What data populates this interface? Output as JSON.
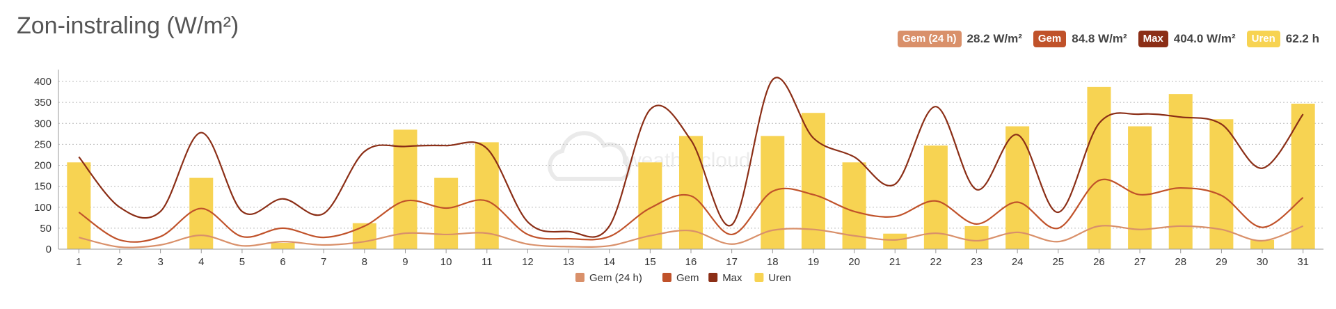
{
  "title": "Zon-instraling (W/m²)",
  "summary": [
    {
      "label": "Gem (24 h)",
      "value": "28.2 W/m²",
      "color": "#d9906a"
    },
    {
      "label": "Gem",
      "value": "84.8 W/m²",
      "color": "#c0522a"
    },
    {
      "label": "Max",
      "value": "404.0 W/m²",
      "color": "#8b2e16"
    },
    {
      "label": "Uren",
      "value": "62.2 h",
      "color": "#f7d352"
    }
  ],
  "watermark": "weathercloud",
  "chart_data": {
    "type": "bar",
    "categories": [
      "1",
      "2",
      "3",
      "4",
      "5",
      "6",
      "7",
      "8",
      "9",
      "10",
      "11",
      "12",
      "13",
      "14",
      "15",
      "16",
      "17",
      "18",
      "19",
      "20",
      "21",
      "22",
      "23",
      "24",
      "25",
      "26",
      "27",
      "28",
      "29",
      "30",
      "31"
    ],
    "ylim": [
      0,
      420
    ],
    "yticks": [
      0,
      50,
      100,
      150,
      200,
      250,
      300,
      350,
      400
    ],
    "grid": true,
    "legend_position": "bottom",
    "series": [
      {
        "name": "Gem (24 h)",
        "kind": "line",
        "color": "#d9906a",
        "values": [
          28,
          5,
          10,
          33,
          8,
          18,
          10,
          18,
          38,
          35,
          38,
          12,
          6,
          8,
          32,
          44,
          12,
          45,
          47,
          32,
          22,
          38,
          20,
          40,
          18,
          55,
          47,
          55,
          47,
          20,
          55
        ]
      },
      {
        "name": "Gem",
        "kind": "line",
        "color": "#c0522a",
        "values": [
          88,
          22,
          30,
          97,
          30,
          50,
          28,
          55,
          115,
          98,
          115,
          35,
          25,
          30,
          98,
          127,
          35,
          138,
          130,
          90,
          78,
          115,
          60,
          112,
          50,
          164,
          130,
          146,
          128,
          52,
          123
        ]
      },
      {
        "name": "Max",
        "kind": "line",
        "color": "#8b2e16",
        "values": [
          220,
          100,
          90,
          278,
          90,
          120,
          85,
          233,
          245,
          247,
          240,
          65,
          42,
          55,
          333,
          260,
          58,
          404,
          265,
          220,
          155,
          340,
          142,
          273,
          88,
          300,
          322,
          315,
          298,
          193,
          322
        ]
      },
      {
        "name": "Uren",
        "kind": "bar",
        "color": "#f7d352",
        "values": [
          207,
          0,
          0,
          170,
          0,
          15,
          0,
          62,
          285,
          170,
          255,
          0,
          0,
          0,
          207,
          270,
          0,
          270,
          325,
          207,
          37,
          247,
          55,
          293,
          0,
          387,
          293,
          370,
          310,
          22,
          347
        ]
      }
    ]
  }
}
